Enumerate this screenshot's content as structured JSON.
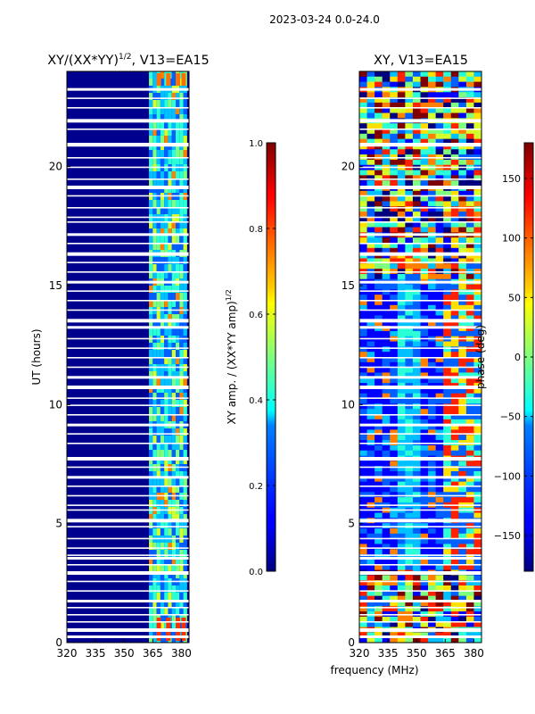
{
  "suptitle": "2023-03-24 0.0-24.0",
  "xlabel": "frequency (MHz)",
  "chart_data": [
    {
      "type": "heatmap",
      "title_main": "XY/(XX*YY)",
      "title_sup": "1/2",
      "title_rest": ", V13=EA15",
      "ylabel": "UT (hours)",
      "xlim": [
        320,
        384
      ],
      "ylim": [
        0,
        24
      ],
      "xticks": [
        "320",
        "335",
        "350",
        "365",
        "380"
      ],
      "xtick_values": [
        320,
        335,
        350,
        365,
        380
      ],
      "yticks": [
        "0",
        "5",
        "10",
        "15",
        "20"
      ],
      "ytick_values": [
        0,
        5,
        10,
        15,
        20
      ],
      "colorbar": {
        "label_main": "XY amp. / (XX*YY amp)",
        "label_sup": "1/2",
        "range": [
          0.0,
          1.0
        ],
        "ticks": [
          "0.0",
          "0.2",
          "0.4",
          "0.6",
          "0.8",
          "1.0"
        ],
        "tick_values": [
          0.0,
          0.2,
          0.4,
          0.6,
          0.8,
          1.0
        ],
        "colormap": "jet"
      }
    },
    {
      "type": "heatmap",
      "title_main": "XY, V13=EA15",
      "ylabel": "",
      "xlim": [
        320,
        384
      ],
      "ylim": [
        0,
        24
      ],
      "xticks": [
        "320",
        "335",
        "350",
        "365",
        "380"
      ],
      "xtick_values": [
        320,
        335,
        350,
        365,
        380
      ],
      "yticks": [
        "0",
        "5",
        "10",
        "15",
        "20"
      ],
      "ytick_values": [
        0,
        5,
        10,
        15,
        20
      ],
      "colorbar": {
        "label_main": "phase (deg)",
        "range": [
          -180,
          180
        ],
        "ticks": [
          "−150",
          "−100",
          "−50",
          "0",
          "50",
          "100",
          "150"
        ],
        "tick_values": [
          -150,
          -100,
          -50,
          0,
          50,
          100,
          150
        ],
        "colormap": "jet"
      }
    }
  ]
}
